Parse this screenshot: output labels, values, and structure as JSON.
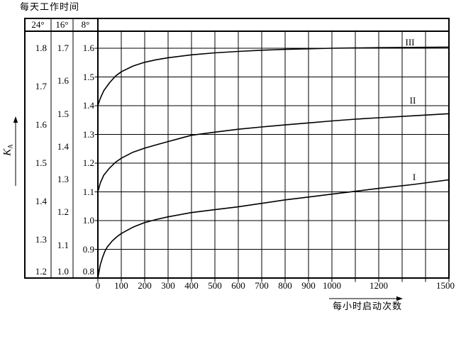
{
  "title": "每天工作时间",
  "y_axis": {
    "label_main": "K",
    "label_sub": "A"
  },
  "x_axis": {
    "title": "每小时启动次数",
    "min": 0,
    "max": 1500,
    "grid_step": 100,
    "labeled_ticks": [
      "0",
      "100",
      "200",
      "300",
      "400",
      "500",
      "600",
      "700",
      "800",
      "900",
      "1000",
      "1200",
      "1500"
    ]
  },
  "scale_columns": [
    {
      "header": "24°",
      "min": 1.2,
      "max": 1.8,
      "ticks": [
        "1.8",
        "1.7",
        "1.6",
        "1.5",
        "1.4",
        "1.3",
        "1.2"
      ]
    },
    {
      "header": "16°",
      "min": 1.0,
      "max": 1.7,
      "ticks": [
        "1.7",
        "1.6",
        "1.5",
        "1.4",
        "1.3",
        "1.2",
        "1.1",
        "1.0"
      ]
    },
    {
      "header": "8°",
      "min": 0.8,
      "max": 1.6,
      "ticks": [
        "1.6",
        "1.5",
        "1.4",
        "1.3",
        "1.2",
        "1.1",
        "1.0",
        "0.9",
        "0.8"
      ]
    }
  ],
  "chart_data": {
    "type": "line",
    "title": "每天工作时间",
    "xlabel": "每小时启动次数",
    "ylabel": "KA",
    "grid": true,
    "x_range": [
      0,
      1500
    ],
    "y_scale_used_for_points": "8h",
    "y_scales": {
      "24h": [
        1.2,
        1.8
      ],
      "16h": [
        1.0,
        1.7
      ],
      "8h": [
        0.8,
        1.6
      ]
    },
    "series": [
      {
        "name": "I",
        "points": [
          [
            0,
            0.8
          ],
          [
            10,
            0.845
          ],
          [
            20,
            0.872
          ],
          [
            30,
            0.893
          ],
          [
            40,
            0.908
          ],
          [
            60,
            0.928
          ],
          [
            80,
            0.943
          ],
          [
            100,
            0.955
          ],
          [
            150,
            0.977
          ],
          [
            200,
            0.993
          ],
          [
            250,
            1.004
          ],
          [
            300,
            1.013
          ],
          [
            400,
            1.028
          ],
          [
            500,
            1.038
          ],
          [
            600,
            1.048
          ],
          [
            700,
            1.06
          ],
          [
            800,
            1.072
          ],
          [
            900,
            1.082
          ],
          [
            1000,
            1.092
          ],
          [
            1100,
            1.102
          ],
          [
            1200,
            1.112
          ],
          [
            1350,
            1.126
          ],
          [
            1500,
            1.142
          ]
        ]
      },
      {
        "name": "II",
        "points": [
          [
            0,
            1.1
          ],
          [
            10,
            1.13
          ],
          [
            25,
            1.158
          ],
          [
            50,
            1.183
          ],
          [
            75,
            1.203
          ],
          [
            100,
            1.217
          ],
          [
            150,
            1.238
          ],
          [
            200,
            1.252
          ],
          [
            250,
            1.264
          ],
          [
            300,
            1.275
          ],
          [
            400,
            1.297
          ],
          [
            500,
            1.308
          ],
          [
            600,
            1.318
          ],
          [
            700,
            1.326
          ],
          [
            800,
            1.333
          ],
          [
            900,
            1.34
          ],
          [
            1000,
            1.347
          ],
          [
            1100,
            1.353
          ],
          [
            1200,
            1.358
          ],
          [
            1350,
            1.365
          ],
          [
            1500,
            1.372
          ]
        ]
      },
      {
        "name": "III",
        "points": [
          [
            0,
            1.4
          ],
          [
            10,
            1.425
          ],
          [
            25,
            1.452
          ],
          [
            50,
            1.48
          ],
          [
            75,
            1.503
          ],
          [
            100,
            1.518
          ],
          [
            150,
            1.538
          ],
          [
            200,
            1.551
          ],
          [
            250,
            1.56
          ],
          [
            300,
            1.567
          ],
          [
            400,
            1.577
          ],
          [
            500,
            1.584
          ],
          [
            600,
            1.589
          ],
          [
            700,
            1.593
          ],
          [
            800,
            1.596
          ],
          [
            900,
            1.598
          ],
          [
            1000,
            1.6
          ],
          [
            1100,
            1.601
          ],
          [
            1200,
            1.602
          ],
          [
            1350,
            1.603
          ],
          [
            1500,
            1.604
          ]
        ]
      }
    ]
  }
}
